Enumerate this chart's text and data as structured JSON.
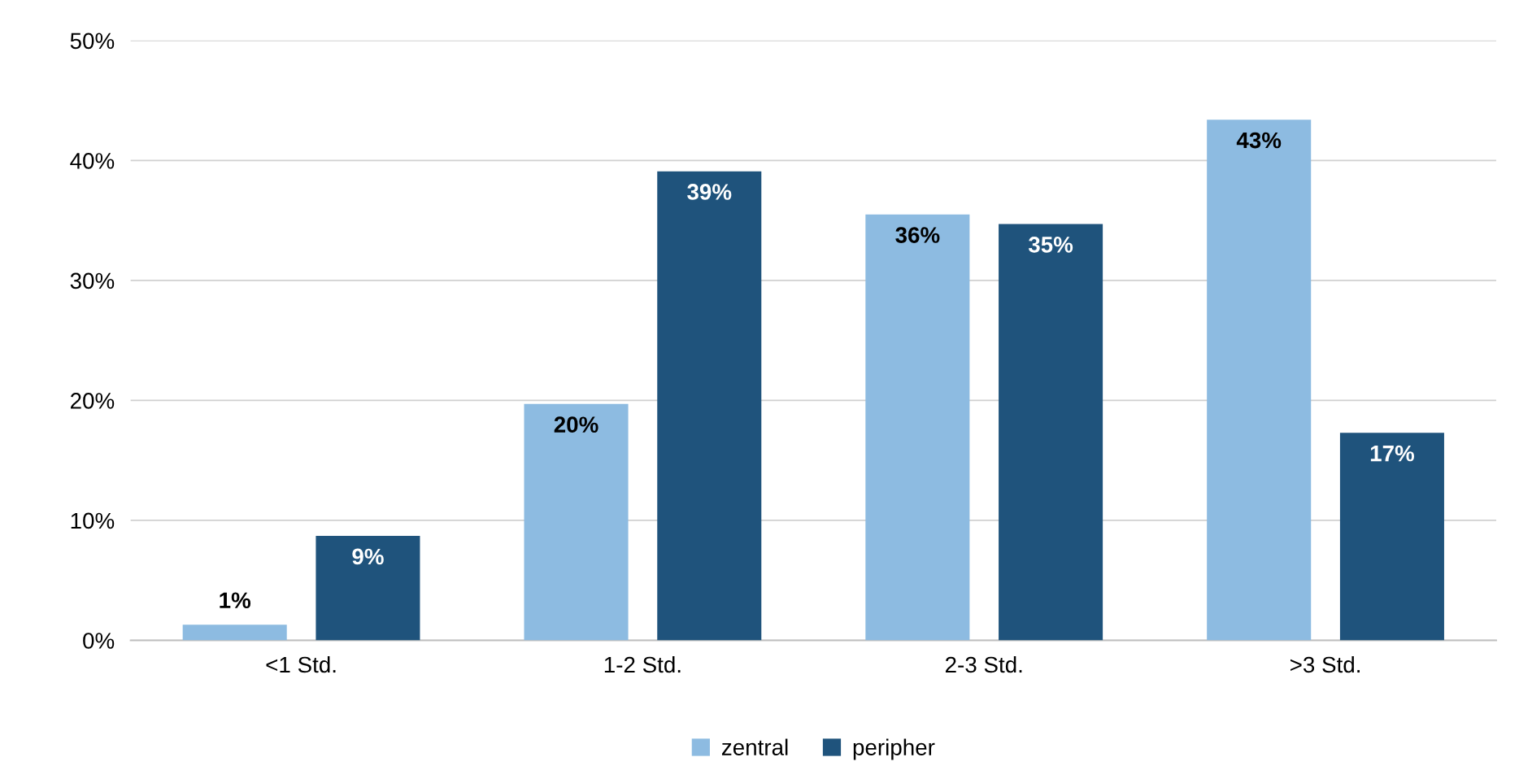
{
  "chart_data": {
    "type": "bar",
    "categories": [
      "<1 Std.",
      "1-2 Std.",
      "2-3 Std.",
      ">3 Std."
    ],
    "series": [
      {
        "name": "zentral",
        "color": "#8dbbe1",
        "values": [
          1.3,
          19.7,
          35.5,
          43.4
        ],
        "value_labels": [
          "1%",
          "20%",
          "36%",
          "43%"
        ]
      },
      {
        "name": "peripher",
        "color": "#1f537c",
        "values": [
          8.7,
          39.1,
          34.7,
          17.3
        ],
        "value_labels": [
          "9%",
          "39%",
          "35%",
          "17%"
        ]
      }
    ],
    "ylim": [
      0,
      50
    ],
    "yticks": [
      {
        "value": 0,
        "label": "0%"
      },
      {
        "value": 10,
        "label": "10%"
      },
      {
        "value": 20,
        "label": "20%"
      },
      {
        "value": 30,
        "label": "30%"
      },
      {
        "value": 40,
        "label": "40%"
      },
      {
        "value": 50,
        "label": "50%"
      }
    ],
    "grid": "y",
    "legend": "bottom"
  }
}
